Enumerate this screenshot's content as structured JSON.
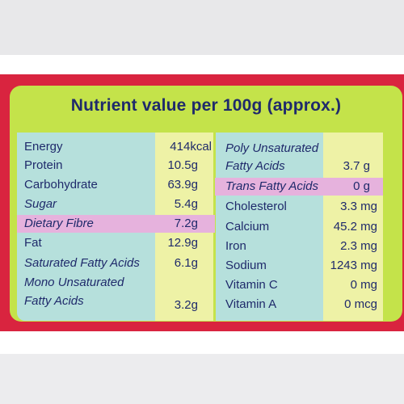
{
  "title": "Nutrient value per 100g (approx.)",
  "left": [
    {
      "name": "Energy",
      "value": "414kcal",
      "italic": false
    },
    {
      "name": "Protein",
      "value": "10.5g",
      "italic": false
    },
    {
      "name": "Carbohydrate",
      "value": "63.9g",
      "italic": false
    },
    {
      "name": "Sugar",
      "value": "5.4g",
      "italic": true
    },
    {
      "name": "Dietary Fibre",
      "value": "7.2g",
      "italic": true,
      "highlight": true
    },
    {
      "name": "Fat",
      "value": "12.9g",
      "italic": false
    },
    {
      "name": "Saturated Fatty Acids",
      "value": "6.1g",
      "italic": true
    },
    {
      "name": "Mono Unsaturated",
      "value": "",
      "italic": true
    },
    {
      "name": "Fatty Acids",
      "value": "3.2g",
      "italic": true
    }
  ],
  "right": [
    {
      "name": "Poly Unsaturated",
      "value": "",
      "italic": true
    },
    {
      "name": "Fatty Acids",
      "value": "3.7 g",
      "italic": true
    },
    {
      "name": "Trans Fatty Acids",
      "value": "0 g",
      "italic": true,
      "highlight": true
    },
    {
      "name": "Cholesterol",
      "value": "3.3 mg",
      "italic": false
    },
    {
      "name": "Calcium",
      "value": "45.2 mg",
      "italic": false
    },
    {
      "name": "Iron",
      "value": "2.3 mg",
      "italic": false
    },
    {
      "name": "Sodium",
      "value": "1243 mg",
      "italic": false
    },
    {
      "name": "Vitamin C",
      "value": "0 mg",
      "italic": false
    },
    {
      "name": "Vitamin A",
      "value": "0 mcg",
      "italic": false
    }
  ],
  "colors": {
    "frame_red": "#d9243f",
    "lime": "#c4e34a",
    "teal": "#b6e0dc",
    "cream": "#eef2a6",
    "pink": "#e6b2dd",
    "text_navy": "#1f2a6b"
  }
}
